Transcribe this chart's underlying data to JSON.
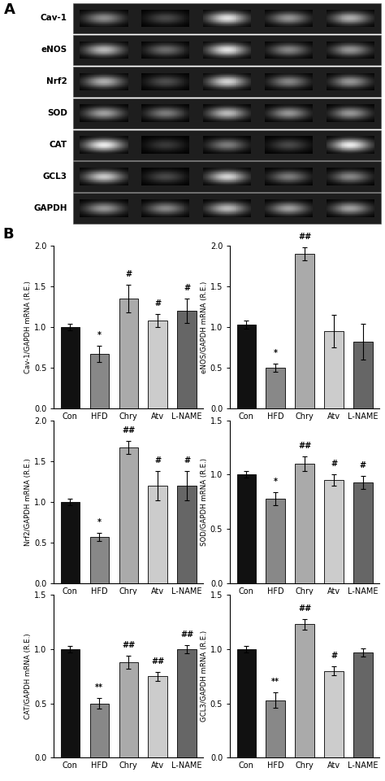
{
  "panel_A_labels": [
    "Cav-1",
    "eNOS",
    "Nrf2",
    "SOD",
    "CAT",
    "GCL3",
    "GAPDH"
  ],
  "x_labels": [
    "Con",
    "HFD",
    "Chry",
    "Atv",
    "L-NAME"
  ],
  "bar_colors": [
    "#111111",
    "#888888",
    "#aaaaaa",
    "#cccccc",
    "#666666"
  ],
  "plots": [
    {
      "ylabel": "Cav-1/GAPDH mRNA (R.E.)",
      "ylim": [
        0,
        2.0
      ],
      "yticks": [
        0.0,
        0.5,
        1.0,
        1.5,
        2.0
      ],
      "values": [
        1.0,
        0.67,
        1.35,
        1.08,
        1.2
      ],
      "errors": [
        0.04,
        0.1,
        0.17,
        0.08,
        0.15
      ],
      "annotations": [
        "",
        "*",
        "#",
        "#",
        "#"
      ]
    },
    {
      "ylabel": "eNOS/GAPDH mRNA (R.E.)",
      "ylim": [
        0,
        2.0
      ],
      "yticks": [
        0.0,
        0.5,
        1.0,
        1.5,
        2.0
      ],
      "values": [
        1.03,
        0.5,
        1.9,
        0.95,
        0.82
      ],
      "errors": [
        0.05,
        0.05,
        0.08,
        0.2,
        0.22
      ],
      "annotations": [
        "",
        "*",
        "##",
        "",
        ""
      ]
    },
    {
      "ylabel": "Nrf2/GAPDH mRNA (R.E.)",
      "ylim": [
        0,
        2.0
      ],
      "yticks": [
        0.0,
        0.5,
        1.0,
        1.5,
        2.0
      ],
      "values": [
        1.0,
        0.57,
        1.67,
        1.2,
        1.2
      ],
      "errors": [
        0.04,
        0.05,
        0.08,
        0.18,
        0.18
      ],
      "annotations": [
        "",
        "*",
        "##",
        "#",
        "#"
      ]
    },
    {
      "ylabel": "SOD/GAPDH mRNA (R.E.)",
      "ylim": [
        0,
        1.5
      ],
      "yticks": [
        0.0,
        0.5,
        1.0,
        1.5
      ],
      "values": [
        1.0,
        0.78,
        1.1,
        0.95,
        0.93
      ],
      "errors": [
        0.03,
        0.06,
        0.07,
        0.05,
        0.06
      ],
      "annotations": [
        "",
        "*",
        "##",
        "#",
        "#"
      ]
    },
    {
      "ylabel": "CAT/GAPDH mRNA (R.E.)",
      "ylim": [
        0,
        1.5
      ],
      "yticks": [
        0.0,
        0.5,
        1.0,
        1.5
      ],
      "values": [
        1.0,
        0.5,
        0.88,
        0.75,
        1.0
      ],
      "errors": [
        0.03,
        0.05,
        0.06,
        0.04,
        0.04
      ],
      "annotations": [
        "",
        "**",
        "##",
        "##",
        "##"
      ]
    },
    {
      "ylabel": "GCL3/GAPDH mRNA (R.E.)",
      "ylim": [
        0,
        1.5
      ],
      "yticks": [
        0.0,
        0.5,
        1.0,
        1.5
      ],
      "values": [
        1.0,
        0.53,
        1.23,
        0.8,
        0.97
      ],
      "errors": [
        0.03,
        0.07,
        0.05,
        0.04,
        0.04
      ],
      "annotations": [
        "",
        "**",
        "##",
        "#",
        ""
      ]
    }
  ],
  "bar_width": 0.65,
  "background_color": "#ffffff",
  "band_intensities": [
    [
      0.55,
      0.28,
      0.88,
      0.58,
      0.68
    ],
    [
      0.72,
      0.42,
      0.88,
      0.52,
      0.58
    ],
    [
      0.68,
      0.3,
      0.82,
      0.52,
      0.58
    ],
    [
      0.62,
      0.48,
      0.72,
      0.58,
      0.58
    ],
    [
      0.92,
      0.22,
      0.48,
      0.28,
      0.92
    ],
    [
      0.78,
      0.28,
      0.82,
      0.48,
      0.52
    ],
    [
      0.58,
      0.52,
      0.72,
      0.62,
      0.62
    ]
  ]
}
